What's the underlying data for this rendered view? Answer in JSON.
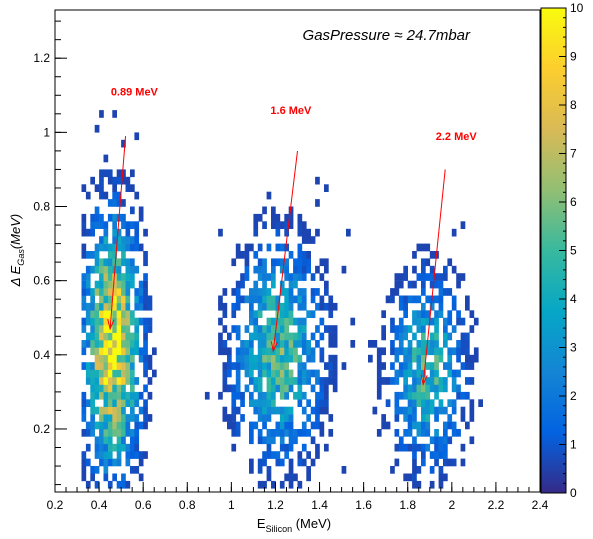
{
  "chart_data": {
    "type": "heatmap",
    "title": "GasPressure ≈ 24.7mbar",
    "xlabel": {
      "main": "E",
      "sub": "Silicon",
      "unit": " (MeV)"
    },
    "ylabel": {
      "main": "Δ E",
      "sub": "Gas",
      "unit": "(MeV)"
    },
    "xlim": [
      0.2,
      2.4
    ],
    "ylim": [
      0.03,
      1.33
    ],
    "x_ticks": [
      0.2,
      0.4,
      0.6,
      0.8,
      1.0,
      1.2,
      1.4,
      1.6,
      1.8,
      2.0,
      2.2,
      2.4
    ],
    "x_tick_labels": [
      "0.2",
      "0.4",
      "0.6",
      "0.8",
      "1",
      "1.2",
      "1.4",
      "1.6",
      "1.8",
      "2",
      "2.2",
      "2.4"
    ],
    "y_ticks": [
      0.2,
      0.4,
      0.6,
      0.8,
      1.0,
      1.2
    ],
    "y_tick_labels": [
      "0.2",
      "0.4",
      "0.6",
      "0.8",
      "1",
      "1.2"
    ],
    "z_range": [
      0,
      10
    ],
    "z_ticks": [
      0,
      1,
      2,
      3,
      4,
      5,
      6,
      7,
      8,
      9,
      10
    ],
    "z_tick_labels": [
      "0",
      "1",
      "2",
      "3",
      "4",
      "5",
      "6",
      "7",
      "8",
      "9",
      "10"
    ],
    "palette": [
      "#352a87",
      "#0363e1",
      "#1485d4",
      "#06a7c6",
      "#38b99e",
      "#92bf73",
      "#d9ba56",
      "#fcce2e",
      "#f9fb0e"
    ],
    "clusters": [
      {
        "x_center": 0.45,
        "x_sigma": 0.075,
        "y_center": 0.42,
        "y_sigma": 0.2,
        "peak": 9
      },
      {
        "x_center": 1.2,
        "x_sigma": 0.12,
        "y_center": 0.4,
        "y_sigma": 0.17,
        "peak": 5
      },
      {
        "x_center": 1.88,
        "x_sigma": 0.1,
        "y_center": 0.35,
        "y_sigma": 0.15,
        "peak": 4.5
      }
    ],
    "annotations": [
      {
        "text": "0.89 MeV",
        "text_x": 0.56,
        "text_y": 1.1,
        "arrow_from": [
          0.52,
          0.99
        ],
        "arrow_to": [
          0.45,
          0.47
        ]
      },
      {
        "text": "1.6 MeV",
        "text_x": 1.27,
        "text_y": 1.05,
        "arrow_from": [
          1.3,
          0.95
        ],
        "arrow_to": [
          1.19,
          0.41
        ]
      },
      {
        "text": "2.2 MeV",
        "text_x": 2.02,
        "text_y": 0.98,
        "arrow_from": [
          1.97,
          0.9
        ],
        "arrow_to": [
          1.87,
          0.32
        ]
      }
    ]
  }
}
